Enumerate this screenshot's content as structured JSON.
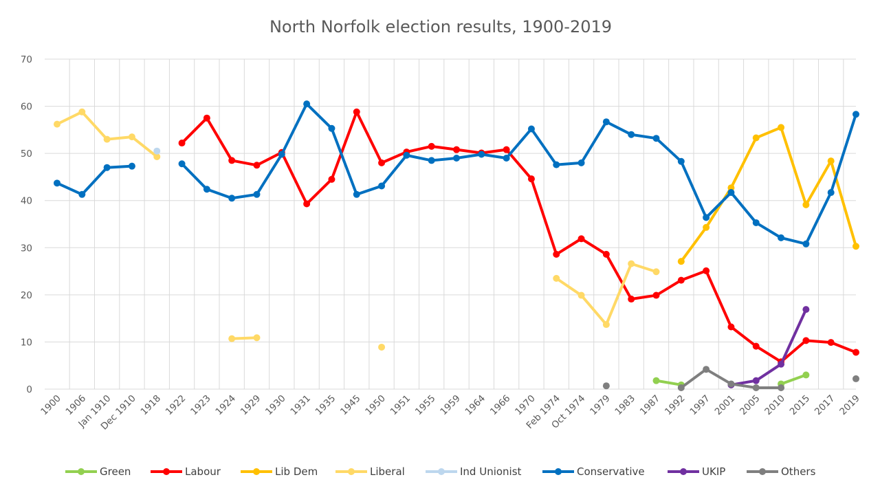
{
  "chart_data": {
    "type": "line",
    "title": "North Norfolk election results, 1900-2019",
    "xlabel": "",
    "ylabel": "",
    "ylim": [
      0,
      70
    ],
    "yticks": [
      0,
      10,
      20,
      30,
      40,
      50,
      60,
      70
    ],
    "grid": true,
    "legend_position": "bottom",
    "categories": [
      "1900",
      "1906",
      "Jan 1910",
      "Dec 1910",
      "1918",
      "1922",
      "1923",
      "1924",
      "1929",
      "1930",
      "1931",
      "1935",
      "1945",
      "1950",
      "1951",
      "1955",
      "1959",
      "1964",
      "1966",
      "1970",
      "Feb 1974",
      "Oct 1974",
      "1979",
      "1983",
      "1987",
      "1992",
      "1997",
      "2001",
      "2005",
      "2010",
      "2015",
      "2017",
      "2019"
    ],
    "series": [
      {
        "name": "Green",
        "color": "#92d050",
        "values": [
          null,
          null,
          null,
          null,
          null,
          null,
          null,
          null,
          null,
          null,
          null,
          null,
          null,
          null,
          null,
          null,
          null,
          null,
          null,
          null,
          null,
          null,
          null,
          null,
          1.8,
          0.9,
          null,
          null,
          null,
          1.1,
          3.0,
          null,
          null
        ]
      },
      {
        "name": "Labour",
        "color": "#ff0000",
        "values": [
          null,
          null,
          null,
          null,
          null,
          52.2,
          57.5,
          48.5,
          47.5,
          50.2,
          39.3,
          44.5,
          58.8,
          48.0,
          50.3,
          51.5,
          50.8,
          50.1,
          50.8,
          44.6,
          28.6,
          31.9,
          28.6,
          19.1,
          19.9,
          23.1,
          25.1,
          13.2,
          9.1,
          5.8,
          10.3,
          9.9,
          7.8
        ]
      },
      {
        "name": "Lib Dem",
        "color": "#ffc000",
        "values": [
          null,
          null,
          null,
          null,
          null,
          null,
          null,
          null,
          null,
          null,
          null,
          null,
          null,
          null,
          null,
          null,
          null,
          null,
          null,
          null,
          null,
          null,
          null,
          null,
          null,
          27.1,
          34.3,
          42.7,
          53.3,
          55.5,
          39.1,
          48.4,
          30.3
        ]
      },
      {
        "name": "Liberal",
        "color": "#ffd966",
        "values": [
          56.2,
          58.8,
          53.0,
          53.5,
          49.3,
          null,
          null,
          10.7,
          10.9,
          null,
          null,
          null,
          null,
          8.9,
          null,
          null,
          null,
          null,
          null,
          null,
          23.5,
          19.9,
          13.7,
          26.6,
          24.9,
          null,
          null,
          null,
          null,
          null,
          null,
          null,
          null
        ]
      },
      {
        "name": "Ind Unionist",
        "color": "#bdd7ee",
        "values": [
          null,
          null,
          null,
          null,
          50.5,
          null,
          null,
          null,
          null,
          null,
          null,
          null,
          null,
          null,
          null,
          null,
          null,
          null,
          null,
          null,
          null,
          null,
          null,
          null,
          null,
          null,
          null,
          null,
          null,
          null,
          null,
          null,
          null
        ]
      },
      {
        "name": "Conservative",
        "color": "#0070c0",
        "values": [
          43.7,
          41.3,
          47.0,
          47.3,
          null,
          47.8,
          42.4,
          40.5,
          41.3,
          49.8,
          60.5,
          55.3,
          41.3,
          43.1,
          49.6,
          48.5,
          49.0,
          49.8,
          49.0,
          55.2,
          47.6,
          48.0,
          56.7,
          54.0,
          53.2,
          48.3,
          36.4,
          41.7,
          35.3,
          32.1,
          30.8,
          41.7,
          58.3
        ]
      },
      {
        "name": "UKIP",
        "color": "#7030a0",
        "values": [
          null,
          null,
          null,
          null,
          null,
          null,
          null,
          null,
          null,
          null,
          null,
          null,
          null,
          null,
          null,
          null,
          null,
          null,
          null,
          null,
          null,
          null,
          null,
          null,
          null,
          null,
          null,
          0.9,
          1.8,
          5.3,
          16.9,
          null,
          null
        ]
      },
      {
        "name": "Others",
        "color": "#7f7f7f",
        "values": [
          null,
          null,
          null,
          null,
          null,
          null,
          null,
          null,
          null,
          null,
          null,
          null,
          null,
          null,
          null,
          null,
          null,
          null,
          null,
          null,
          null,
          null,
          0.7,
          null,
          null,
          0.3,
          4.2,
          1.1,
          0.3,
          0.3,
          null,
          null,
          2.2
        ]
      }
    ]
  }
}
